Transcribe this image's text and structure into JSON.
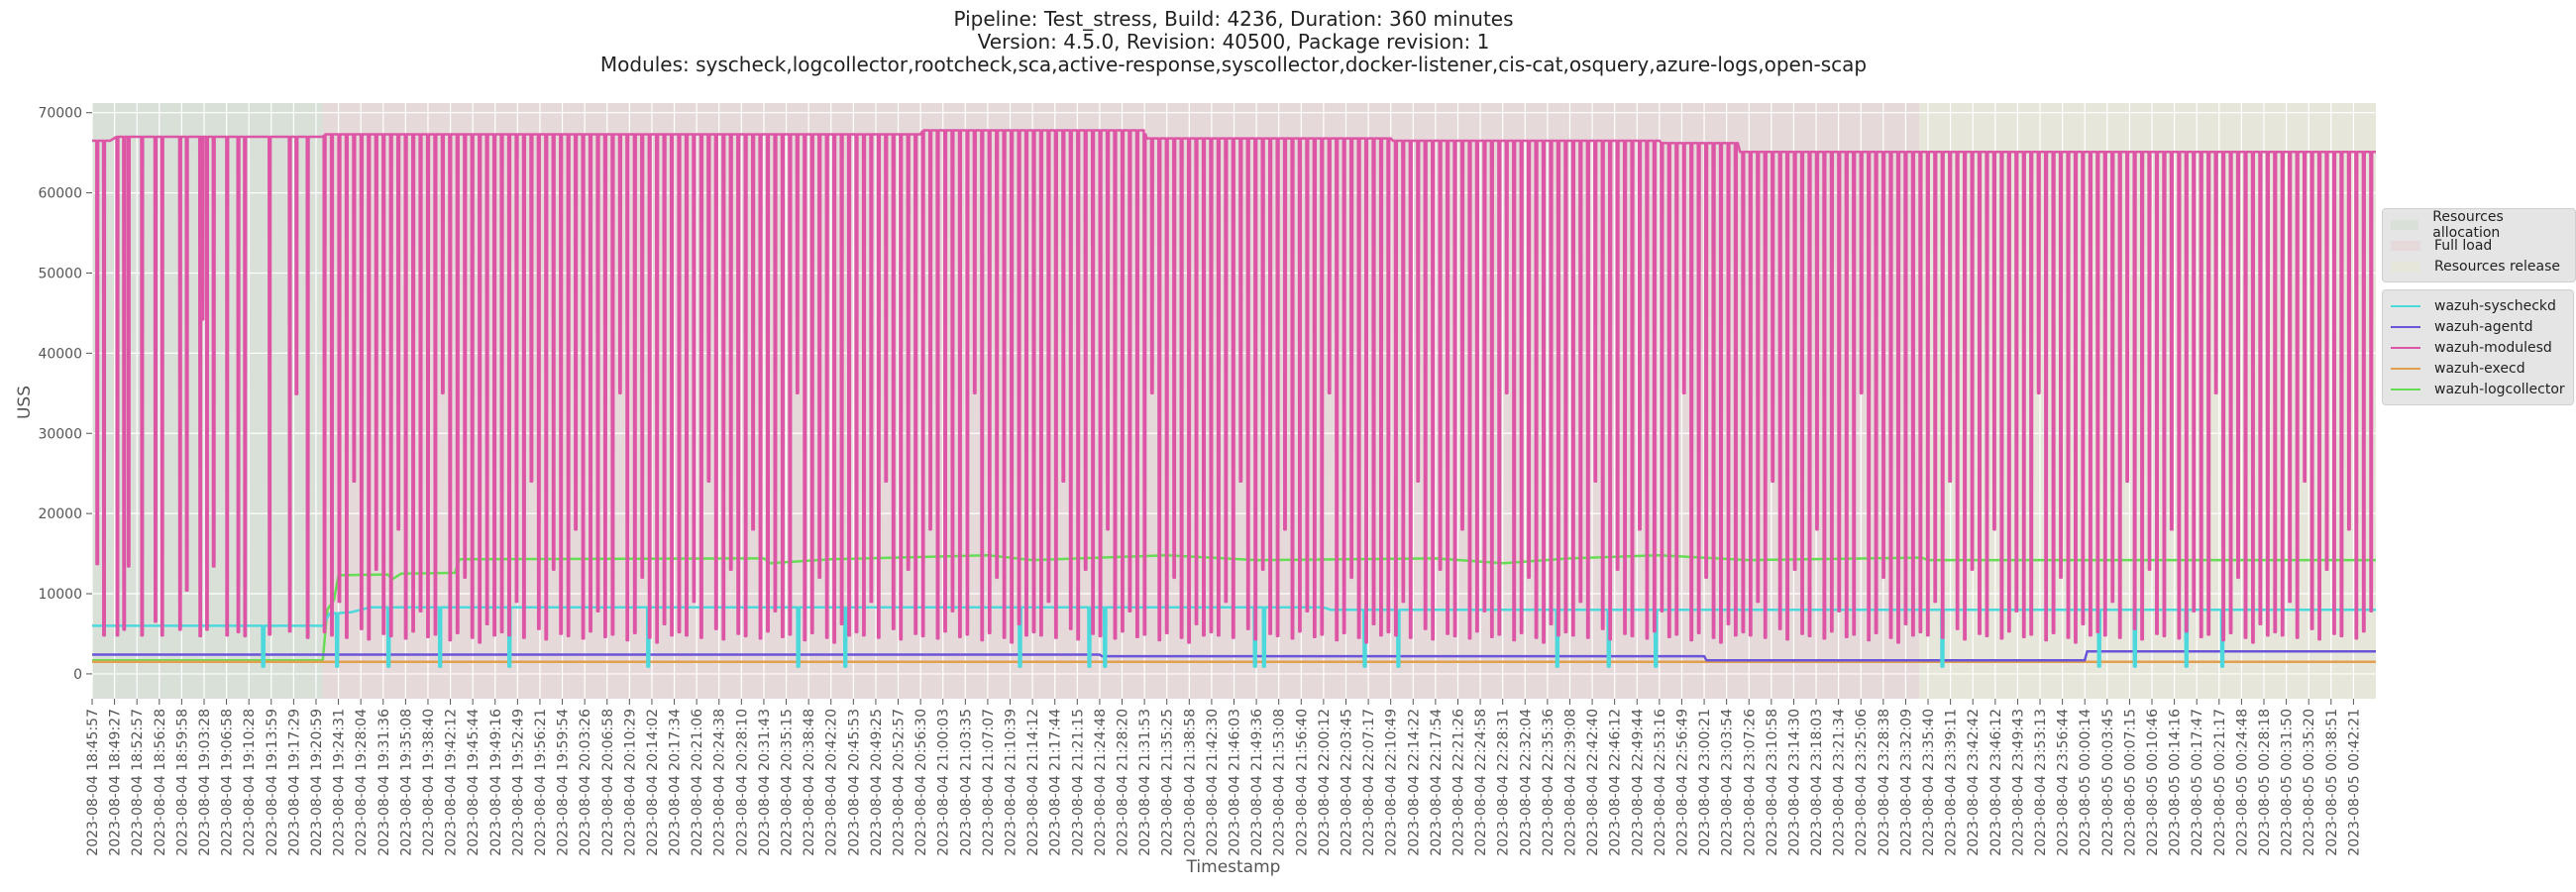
{
  "chart_data": {
    "type": "line",
    "title": [
      "Pipeline: Test_stress, Build: 4236, Duration: 360 minutes",
      "Version: 4.5.0, Revision: 40500, Package revision: 1",
      "Modules: syscheck,logcollector,rootcheck,sca,active-response,syscollector,docker-listener,cis-cat,osquery,azure-logs,open-scap"
    ],
    "xlabel": "Timestamp",
    "ylabel": "USS",
    "ylim": [
      -3100,
      71200
    ],
    "yticks": [
      0,
      10000,
      20000,
      30000,
      40000,
      50000,
      60000,
      70000
    ],
    "xlim_index": [
      0,
      102
    ],
    "grid": true,
    "x_ticks": [
      "2023-08-04 18:45:57",
      "2023-08-04 18:49:27",
      "2023-08-04 18:52:57",
      "2023-08-04 18:56:28",
      "2023-08-04 18:59:58",
      "2023-08-04 19:03:28",
      "2023-08-04 19:06:58",
      "2023-08-04 19:10:28",
      "2023-08-04 19:13:59",
      "2023-08-04 19:17:29",
      "2023-08-04 19:20:59",
      "2023-08-04 19:24:31",
      "2023-08-04 19:28:04",
      "2023-08-04 19:31:36",
      "2023-08-04 19:35:08",
      "2023-08-04 19:38:40",
      "2023-08-04 19:42:12",
      "2023-08-04 19:45:44",
      "2023-08-04 19:49:16",
      "2023-08-04 19:52:49",
      "2023-08-04 19:56:21",
      "2023-08-04 19:59:54",
      "2023-08-04 20:03:26",
      "2023-08-04 20:06:58",
      "2023-08-04 20:10:29",
      "2023-08-04 20:14:02",
      "2023-08-04 20:17:34",
      "2023-08-04 20:21:06",
      "2023-08-04 20:24:38",
      "2023-08-04 20:28:10",
      "2023-08-04 20:31:43",
      "2023-08-04 20:35:15",
      "2023-08-04 20:38:48",
      "2023-08-04 20:42:20",
      "2023-08-04 20:45:53",
      "2023-08-04 20:49:25",
      "2023-08-04 20:52:57",
      "2023-08-04 20:56:30",
      "2023-08-04 21:00:03",
      "2023-08-04 21:03:35",
      "2023-08-04 21:07:07",
      "2023-08-04 21:10:39",
      "2023-08-04 21:14:12",
      "2023-08-04 21:17:44",
      "2023-08-04 21:21:15",
      "2023-08-04 21:24:48",
      "2023-08-04 21:28:20",
      "2023-08-04 21:31:53",
      "2023-08-04 21:35:25",
      "2023-08-04 21:38:58",
      "2023-08-04 21:42:30",
      "2023-08-04 21:46:03",
      "2023-08-04 21:49:36",
      "2023-08-04 21:53:08",
      "2023-08-04 21:56:40",
      "2023-08-04 22:00:12",
      "2023-08-04 22:03:45",
      "2023-08-04 22:07:17",
      "2023-08-04 22:10:49",
      "2023-08-04 22:14:22",
      "2023-08-04 22:17:54",
      "2023-08-04 22:21:26",
      "2023-08-04 22:24:58",
      "2023-08-04 22:28:31",
      "2023-08-04 22:32:04",
      "2023-08-04 22:35:36",
      "2023-08-04 22:39:08",
      "2023-08-04 22:42:40",
      "2023-08-04 22:46:12",
      "2023-08-04 22:49:44",
      "2023-08-04 22:53:16",
      "2023-08-04 22:56:49",
      "2023-08-04 23:00:21",
      "2023-08-04 23:03:54",
      "2023-08-04 23:07:26",
      "2023-08-04 23:10:58",
      "2023-08-04 23:14:30",
      "2023-08-04 23:18:03",
      "2023-08-04 23:21:34",
      "2023-08-04 23:25:06",
      "2023-08-04 23:28:38",
      "2023-08-04 23:32:09",
      "2023-08-04 23:35:40",
      "2023-08-04 23:39:11",
      "2023-08-04 23:42:42",
      "2023-08-04 23:46:12",
      "2023-08-04 23:49:43",
      "2023-08-04 23:53:13",
      "2023-08-04 23:56:44",
      "2023-08-05 00:00:14",
      "2023-08-05 00:03:45",
      "2023-08-05 00:07:15",
      "2023-08-05 00:10:46",
      "2023-08-05 00:14:16",
      "2023-08-05 00:17:47",
      "2023-08-05 00:21:17",
      "2023-08-05 00:24:48",
      "2023-08-05 00:28:18",
      "2023-08-05 00:31:50",
      "2023-08-05 00:35:20",
      "2023-08-05 00:38:51",
      "2023-08-05 00:42:21"
    ],
    "phases": [
      {
        "name": "Resources allocation",
        "from": 0,
        "to": 10.3,
        "color": "#d8e0d8"
      },
      {
        "name": "Full load",
        "from": 10.3,
        "to": 81.6,
        "color": "#e6d9da"
      },
      {
        "name": "Resources release",
        "from": 81.6,
        "to": 102,
        "color": "#e6e6da"
      }
    ],
    "series": [
      {
        "name": "wazuh-syscheckd",
        "color": "#4dd9dc",
        "steps": [
          [
            0,
            6000
          ],
          [
            10.3,
            6000
          ],
          [
            10.6,
            7500
          ],
          [
            11.6,
            7700
          ],
          [
            12.4,
            8300
          ],
          [
            55,
            8300
          ],
          [
            55.3,
            8000
          ],
          [
            102,
            8000
          ]
        ],
        "dips": {
          "low": 900,
          "at": [
            7.6,
            10.9,
            13.2,
            15.5,
            18.6,
            24.8,
            31.5,
            33.6,
            41.4,
            44.5,
            45.2,
            51.9,
            52.3,
            56.8,
            58.3,
            65.4,
            67.7,
            69.8,
            82.6,
            89.6,
            91.2,
            93.5,
            95.1
          ]
        }
      },
      {
        "name": "wazuh-agentd",
        "color": "#6a55d8",
        "steps": [
          [
            0,
            2400
          ],
          [
            45,
            2400
          ],
          [
            45.1,
            2200
          ],
          [
            72,
            2200
          ],
          [
            72.1,
            1700
          ],
          [
            89,
            1700
          ],
          [
            89.1,
            2800
          ],
          [
            102,
            2800
          ]
        ]
      },
      {
        "name": "wazuh-modulesd",
        "color": "#dd55a5",
        "levels": [
          [
            0,
            66500
          ],
          [
            0.8,
            66500
          ],
          [
            1.1,
            67000
          ],
          [
            10.3,
            67000
          ],
          [
            10.4,
            67300
          ],
          [
            37,
            67300
          ],
          [
            37.1,
            67800
          ],
          [
            47,
            67800
          ],
          [
            47.1,
            66800
          ],
          [
            58,
            66800
          ],
          [
            58.1,
            66500
          ],
          [
            70,
            66500
          ],
          [
            70.1,
            66200
          ],
          [
            73.5,
            66200
          ],
          [
            73.6,
            65100
          ],
          [
            102,
            65100
          ]
        ],
        "dips": [
          [
            0.2,
            13700
          ],
          [
            0.5,
            4800
          ],
          [
            1.1,
            4800
          ],
          [
            1.4,
            5500
          ],
          [
            1.6,
            13400
          ],
          [
            2.2,
            4800
          ],
          [
            2.8,
            6500
          ],
          [
            3.1,
            4800
          ],
          [
            3.9,
            5500
          ],
          [
            4.2,
            10400
          ],
          [
            4.8,
            4700
          ],
          [
            4.9,
            44200
          ],
          [
            5.1,
            5500
          ],
          [
            5.4,
            13400
          ],
          [
            6.0,
            4800
          ],
          [
            6.5,
            5200
          ],
          [
            6.8,
            4700
          ],
          [
            7.9,
            4900
          ],
          [
            8.8,
            5300
          ],
          [
            9.1,
            34900
          ],
          [
            9.6,
            4500
          ]
        ],
        "periodic_dips": {
          "from": 10.35,
          "to": 101.8,
          "period": 0.33,
          "lows": [
            5200,
            4800,
            9000,
            4500,
            24000,
            5600,
            4300,
            13000,
            5000,
            4700,
            18000,
            4400,
            5300,
            7800,
            4600,
            4900,
            35000,
            4200,
            5100,
            12000,
            4500,
            3900,
            6200,
            4800
          ]
        }
      },
      {
        "name": "wazuh-execd",
        "color": "#e0a050",
        "steps": [
          [
            0,
            1500
          ],
          [
            102,
            1500
          ]
        ]
      },
      {
        "name": "wazuh-logcollector",
        "color": "#66dd55",
        "steps": [
          [
            0,
            1700
          ],
          [
            10.3,
            1700
          ],
          [
            10.5,
            8000
          ],
          [
            10.8,
            9200
          ],
          [
            11.0,
            12300
          ],
          [
            13.2,
            12400
          ],
          [
            13.4,
            11800
          ],
          [
            13.8,
            12500
          ],
          [
            16.2,
            12600
          ],
          [
            16.4,
            14300
          ],
          [
            30,
            14400
          ],
          [
            30.3,
            13800
          ],
          [
            33,
            14300
          ],
          [
            40,
            14800
          ],
          [
            42,
            14200
          ],
          [
            48,
            14800
          ],
          [
            52,
            14200
          ],
          [
            60,
            14400
          ],
          [
            63,
            13800
          ],
          [
            66,
            14400
          ],
          [
            70,
            14800
          ],
          [
            74,
            14200
          ],
          [
            81.7,
            14500
          ],
          [
            82,
            14200
          ],
          [
            102,
            14200
          ]
        ]
      }
    ]
  }
}
